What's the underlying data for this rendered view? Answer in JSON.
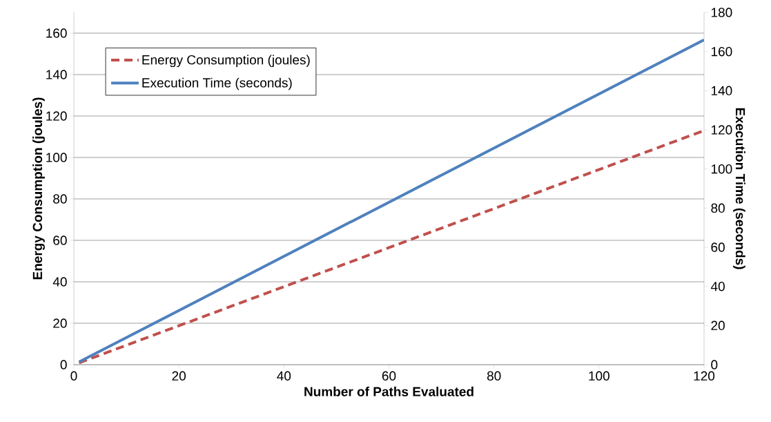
{
  "chart_data": {
    "type": "line",
    "xlabel": "Number of Paths Evaluated",
    "ylabel": "Energy Consumption (joules)",
    "y2label": "Execution Time (seconds)",
    "x": [
      1,
      120
    ],
    "series": [
      {
        "name": "Energy Consumption (joules)",
        "color": "#c0504d",
        "values": [
          0.9,
          113
        ],
        "line_style": "dashed"
      },
      {
        "name": "Execution Time (seconds)",
        "color": "#4f81bd",
        "values": [
          1.4,
          166
        ],
        "axis": "y2",
        "line_style": "solid"
      }
    ],
    "xlim": [
      0,
      120
    ],
    "xticks": [
      0,
      20,
      40,
      60,
      80,
      100,
      120
    ],
    "ylim": [
      0,
      170
    ],
    "yticks": [
      0,
      20,
      40,
      60,
      80,
      100,
      120,
      140,
      160
    ],
    "y2lim": [
      0,
      180
    ],
    "y2ticks": [
      0,
      20,
      40,
      60,
      80,
      100,
      120,
      140,
      160,
      180
    ],
    "grid": "y",
    "legend": "top left",
    "marker": "none"
  }
}
